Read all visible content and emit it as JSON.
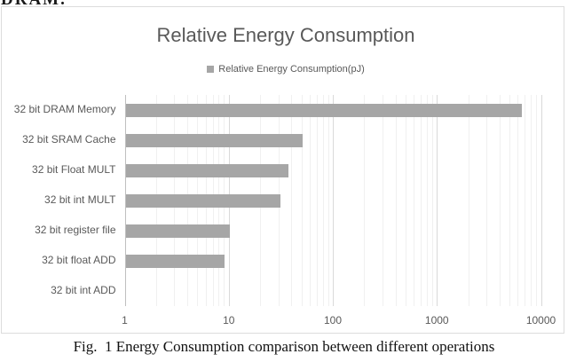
{
  "page": {
    "clipped_text": "DRAM.",
    "caption": "Fig.  1 Energy Consumption comparison between different operations"
  },
  "chart": {
    "title": "Relative Energy Consumption",
    "legend_label": "Relative Energy Consumption(pJ)",
    "bar_color": "#a6a6a6",
    "text_color": "#595959",
    "major_grid_color": "#d9d9d9",
    "minor_grid_color": "#f0f0f0"
  },
  "chart_data": {
    "type": "bar",
    "orientation": "horizontal",
    "title": "Relative Energy Consumption",
    "legend": [
      "Relative Energy Consumption(pJ)"
    ],
    "legend_position": "top",
    "categories": [
      "32 bit DRAM Memory",
      "32 bit SRAM Cache",
      "32 bit Float MULT",
      "32 bit int MULT",
      "32 bit register file",
      "32 bit float ADD",
      "32 bit int ADD"
    ],
    "values": [
      6400,
      50,
      37,
      31,
      10,
      9,
      1
    ],
    "xscale": "log",
    "xticks": [
      "1",
      "10",
      "100",
      "1000",
      "10000"
    ],
    "xtick_values": [
      1,
      10,
      100,
      1000,
      10000
    ],
    "xlim": [
      1,
      14000
    ],
    "grid": true,
    "minor_grid": true
  }
}
